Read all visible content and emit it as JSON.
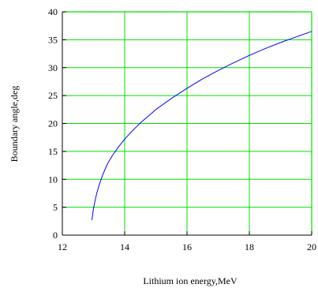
{
  "chart_data": {
    "type": "line",
    "title": "",
    "xlabel": "Lithium ion energy,MeV",
    "ylabel": "Boundary angle,deg",
    "xlim": [
      12,
      20
    ],
    "ylim": [
      0,
      40
    ],
    "x_ticks": [
      12,
      14,
      16,
      18,
      20
    ],
    "y_ticks": [
      0,
      5,
      10,
      15,
      20,
      25,
      30,
      35,
      40
    ],
    "x_tick_labels": [
      "12",
      "14",
      "16",
      "18",
      "20"
    ],
    "y_tick_labels": [
      "0",
      "5",
      "10",
      "15",
      "20",
      "25",
      "30",
      "35",
      "40"
    ],
    "grid": true,
    "colors": {
      "grid": "#00e000",
      "line": "#0000ff",
      "frame": "#000000"
    },
    "series": [
      {
        "x": [
          12.95,
          13.0,
          13.1,
          13.2,
          13.3,
          13.45,
          13.6,
          13.8,
          14.0,
          14.25,
          14.5,
          14.8,
          15.0,
          15.5,
          16.0,
          16.5,
          17.0,
          17.5,
          18.0,
          18.5,
          19.0,
          19.5,
          20.0
        ],
        "y": [
          2.7,
          4.8,
          7.4,
          9.3,
          10.9,
          12.8,
          14.2,
          15.8,
          17.2,
          18.7,
          20.1,
          21.5,
          22.5,
          24.5,
          26.3,
          28.0,
          29.5,
          30.9,
          32.2,
          33.4,
          34.5,
          35.5,
          36.5
        ]
      }
    ]
  }
}
